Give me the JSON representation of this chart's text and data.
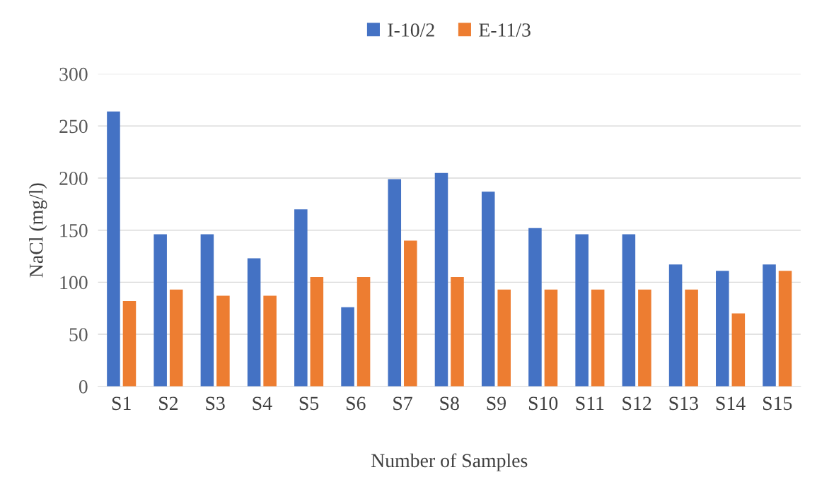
{
  "chart_data": {
    "type": "bar",
    "xlabel": "Number of Samples",
    "ylabel": "NaCl (mg/l)",
    "categories": [
      "S1",
      "S2",
      "S3",
      "S4",
      "S5",
      "S6",
      "S7",
      "S8",
      "S9",
      "S10",
      "S11",
      "S12",
      "S13",
      "S14",
      "S15"
    ],
    "series": [
      {
        "name": "I-10/2",
        "color": "#4472c4",
        "values": [
          264,
          146,
          146,
          123,
          170,
          76,
          199,
          205,
          187,
          152,
          146,
          146,
          117,
          111,
          117
        ]
      },
      {
        "name": "E-11/3",
        "color": "#ed7d31",
        "values": [
          82,
          93,
          87,
          87,
          105,
          105,
          140,
          105,
          93,
          93,
          93,
          93,
          93,
          70,
          111
        ]
      }
    ],
    "ylim": [
      0,
      300
    ],
    "yticks": [
      0,
      50,
      100,
      150,
      200,
      250,
      300
    ],
    "grid": "y",
    "legend": "top"
  }
}
